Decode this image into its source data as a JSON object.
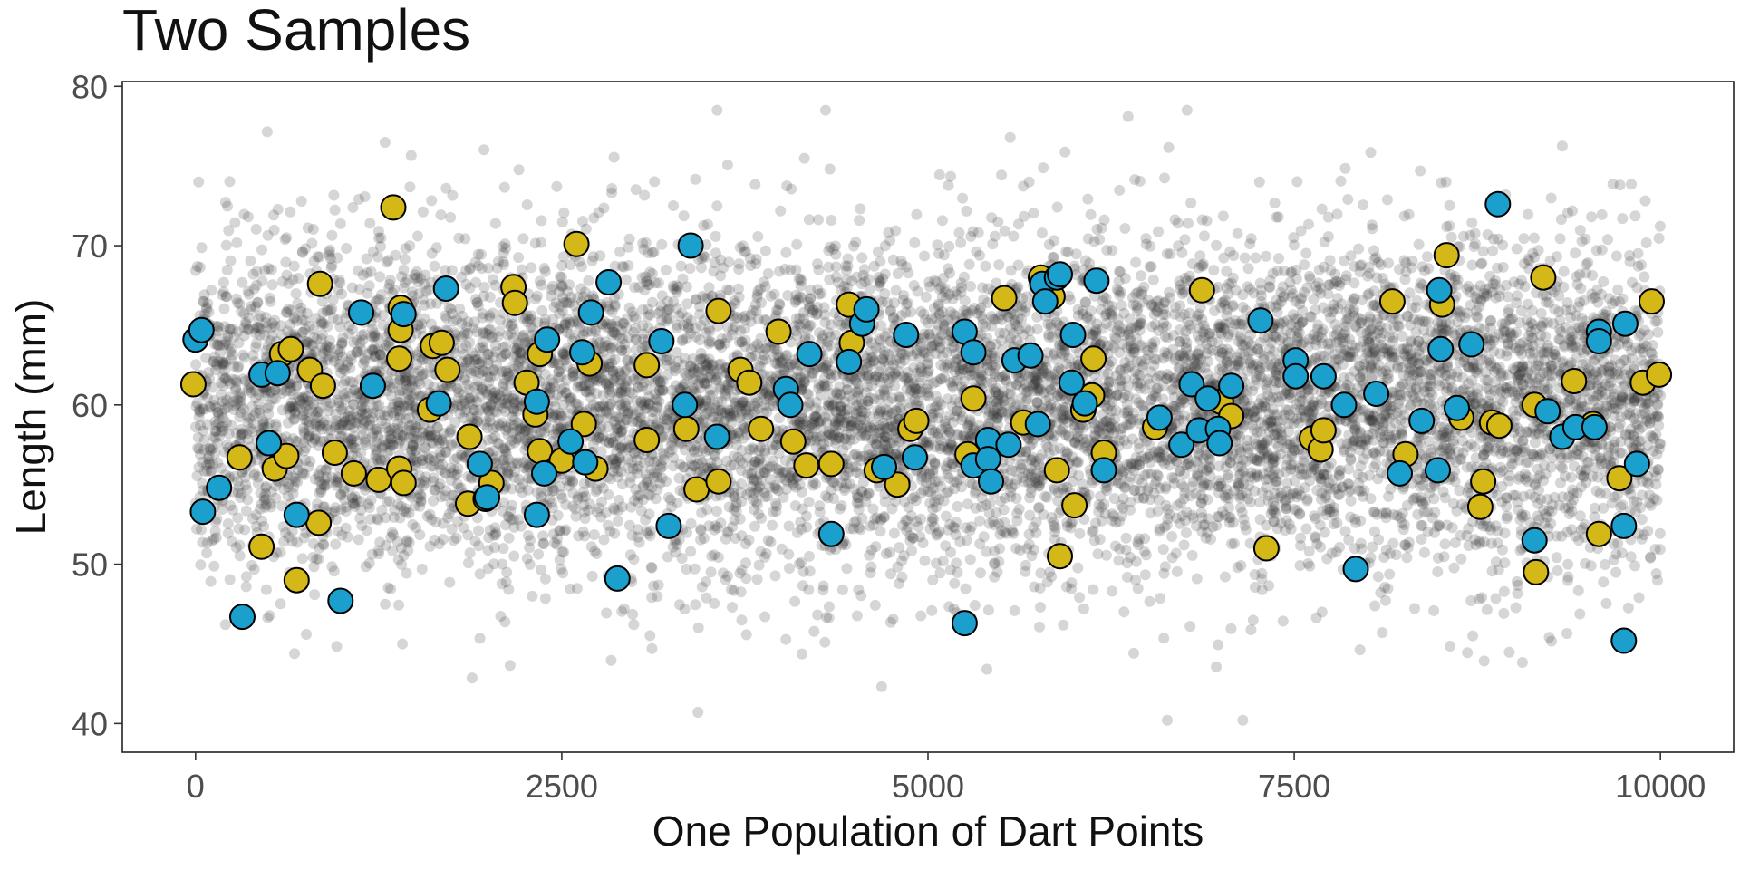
{
  "chart_data": {
    "type": "scatter",
    "title": "Two Samples",
    "xlabel": "One Population of Dart Points",
    "ylabel": "Length (mm)",
    "xlim": [
      -500,
      10500
    ],
    "ylim": [
      38.2,
      80.3
    ],
    "x_ticks": [
      0,
      2500,
      5000,
      7500,
      10000
    ],
    "y_ticks": [
      40,
      50,
      60,
      70,
      80
    ],
    "grid": false,
    "legend": "none",
    "population": {
      "description_free": true,
      "color": "#333333",
      "opacity": 0.2,
      "n": 10000,
      "x_range": [
        0,
        10000
      ],
      "mean": 60,
      "sd": 5,
      "y_range": [
        40.2,
        78.5
      ]
    },
    "series": [
      {
        "color": "#D4B817",
        "points": [
          [
            -15,
            61.3
          ],
          [
            300,
            56.7
          ],
          [
            450,
            51.1
          ],
          [
            500,
            57.6
          ],
          [
            540,
            56.0
          ],
          [
            590,
            63.2
          ],
          [
            620,
            56.8
          ],
          [
            650,
            63.5
          ],
          [
            690,
            49.0
          ],
          [
            780,
            62.2
          ],
          [
            840,
            52.6
          ],
          [
            850,
            67.6
          ],
          [
            870,
            61.2
          ],
          [
            950,
            57.0
          ],
          [
            1080,
            55.7
          ],
          [
            1250,
            55.3
          ],
          [
            1350,
            72.4
          ],
          [
            1390,
            56.0
          ],
          [
            1390,
            62.9
          ],
          [
            1400,
            64.7
          ],
          [
            1400,
            66.1
          ],
          [
            1420,
            55.1
          ],
          [
            1600,
            59.7
          ],
          [
            1620,
            63.7
          ],
          [
            1680,
            63.9
          ],
          [
            1720,
            62.2
          ],
          [
            1860,
            53.8
          ],
          [
            1870,
            58.0
          ],
          [
            1980,
            54.1
          ],
          [
            2020,
            55.1
          ],
          [
            2170,
            67.4
          ],
          [
            2180,
            66.4
          ],
          [
            2260,
            61.4
          ],
          [
            2320,
            59.4
          ],
          [
            2350,
            57.1
          ],
          [
            2350,
            63.2
          ],
          [
            2500,
            56.5
          ],
          [
            2600,
            70.1
          ],
          [
            2650,
            58.8
          ],
          [
            2690,
            62.6
          ],
          [
            2730,
            56.0
          ],
          [
            3080,
            57.8
          ],
          [
            3080,
            62.5
          ],
          [
            3350,
            58.5
          ],
          [
            3420,
            54.7
          ],
          [
            3570,
            65.9
          ],
          [
            3570,
            55.2
          ],
          [
            3720,
            62.2
          ],
          [
            3780,
            61.4
          ],
          [
            3860,
            58.5
          ],
          [
            3980,
            64.6
          ],
          [
            4080,
            57.7
          ],
          [
            4170,
            56.2
          ],
          [
            4340,
            56.3
          ],
          [
            4460,
            66.3
          ],
          [
            4480,
            63.9
          ],
          [
            4650,
            55.9
          ],
          [
            4790,
            55.0
          ],
          [
            4880,
            58.5
          ],
          [
            4920,
            59.0
          ],
          [
            5270,
            56.9
          ],
          [
            5310,
            60.4
          ],
          [
            5520,
            66.7
          ],
          [
            5650,
            58.9
          ],
          [
            5770,
            68.0
          ],
          [
            5850,
            66.8
          ],
          [
            5880,
            55.9
          ],
          [
            5900,
            50.5
          ],
          [
            6000,
            53.7
          ],
          [
            6060,
            59.7
          ],
          [
            6120,
            60.6
          ],
          [
            6130,
            62.9
          ],
          [
            6200,
            57.0
          ],
          [
            6550,
            58.6
          ],
          [
            6870,
            67.2
          ],
          [
            7000,
            60.2
          ],
          [
            7070,
            59.3
          ],
          [
            7310,
            51.0
          ],
          [
            7620,
            57.9
          ],
          [
            7680,
            57.2
          ],
          [
            7700,
            58.4
          ],
          [
            8170,
            66.5
          ],
          [
            8260,
            56.9
          ],
          [
            8510,
            66.3
          ],
          [
            8540,
            69.4
          ],
          [
            8640,
            59.2
          ],
          [
            8770,
            53.6
          ],
          [
            8790,
            55.2
          ],
          [
            8850,
            58.9
          ],
          [
            8900,
            58.7
          ],
          [
            9140,
            60.0
          ],
          [
            9150,
            49.5
          ],
          [
            9200,
            68.0
          ],
          [
            9410,
            61.5
          ],
          [
            9540,
            58.8
          ],
          [
            9580,
            51.9
          ],
          [
            9720,
            55.4
          ],
          [
            9880,
            61.4
          ],
          [
            9940,
            66.5
          ],
          [
            9990,
            61.9
          ]
        ]
      },
      {
        "color": "#1BA0CE",
        "points": [
          [
            0,
            64.1
          ],
          [
            40,
            64.7
          ],
          [
            50,
            53.3
          ],
          [
            160,
            54.8
          ],
          [
            320,
            46.7
          ],
          [
            450,
            61.9
          ],
          [
            500,
            57.6
          ],
          [
            560,
            62.0
          ],
          [
            690,
            53.1
          ],
          [
            990,
            47.7
          ],
          [
            1130,
            65.8
          ],
          [
            1210,
            61.2
          ],
          [
            1420,
            65.7
          ],
          [
            1660,
            60.1
          ],
          [
            1710,
            67.3
          ],
          [
            1940,
            56.3
          ],
          [
            1990,
            54.2
          ],
          [
            2330,
            60.2
          ],
          [
            2330,
            53.1
          ],
          [
            2380,
            55.7
          ],
          [
            2400,
            64.1
          ],
          [
            2560,
            57.7
          ],
          [
            2640,
            63.3
          ],
          [
            2660,
            56.4
          ],
          [
            2700,
            65.8
          ],
          [
            2820,
            67.7
          ],
          [
            2880,
            49.1
          ],
          [
            3180,
            64.0
          ],
          [
            3230,
            52.4
          ],
          [
            3340,
            60.0
          ],
          [
            3380,
            70.0
          ],
          [
            3560,
            58.0
          ],
          [
            4030,
            61.0
          ],
          [
            4060,
            60.0
          ],
          [
            4190,
            63.2
          ],
          [
            4340,
            51.9
          ],
          [
            4460,
            62.7
          ],
          [
            4550,
            65.1
          ],
          [
            4580,
            66.0
          ],
          [
            4700,
            56.1
          ],
          [
            4850,
            64.4
          ],
          [
            4910,
            56.7
          ],
          [
            5250,
            64.6
          ],
          [
            5250,
            46.3
          ],
          [
            5310,
            63.3
          ],
          [
            5310,
            56.2
          ],
          [
            5410,
            57.8
          ],
          [
            5410,
            56.6
          ],
          [
            5430,
            55.2
          ],
          [
            5550,
            57.5
          ],
          [
            5590,
            62.8
          ],
          [
            5700,
            63.1
          ],
          [
            5750,
            58.8
          ],
          [
            5780,
            67.6
          ],
          [
            5800,
            66.5
          ],
          [
            5880,
            68.0
          ],
          [
            5900,
            68.2
          ],
          [
            5980,
            61.4
          ],
          [
            5990,
            64.4
          ],
          [
            6070,
            60.1
          ],
          [
            6150,
            67.8
          ],
          [
            6200,
            55.9
          ],
          [
            6580,
            59.2
          ],
          [
            6730,
            57.5
          ],
          [
            6800,
            61.3
          ],
          [
            6850,
            58.4
          ],
          [
            6910,
            60.4
          ],
          [
            6980,
            58.5
          ],
          [
            6990,
            57.6
          ],
          [
            7070,
            61.2
          ],
          [
            7270,
            65.3
          ],
          [
            7510,
            62.8
          ],
          [
            7510,
            61.8
          ],
          [
            7700,
            61.8
          ],
          [
            7840,
            60.0
          ],
          [
            7920,
            49.7
          ],
          [
            8060,
            60.7
          ],
          [
            8220,
            55.7
          ],
          [
            8370,
            59.0
          ],
          [
            8480,
            55.9
          ],
          [
            8490,
            67.2
          ],
          [
            8500,
            63.5
          ],
          [
            8610,
            59.8
          ],
          [
            8710,
            63.8
          ],
          [
            8890,
            72.6
          ],
          [
            9140,
            51.5
          ],
          [
            9230,
            59.6
          ],
          [
            9330,
            58.0
          ],
          [
            9420,
            58.6
          ],
          [
            9550,
            58.6
          ],
          [
            9580,
            64.6
          ],
          [
            9580,
            64.0
          ],
          [
            9750,
            52.4
          ],
          [
            9750,
            45.2
          ],
          [
            9760,
            65.1
          ],
          [
            9840,
            56.3
          ]
        ]
      }
    ]
  }
}
